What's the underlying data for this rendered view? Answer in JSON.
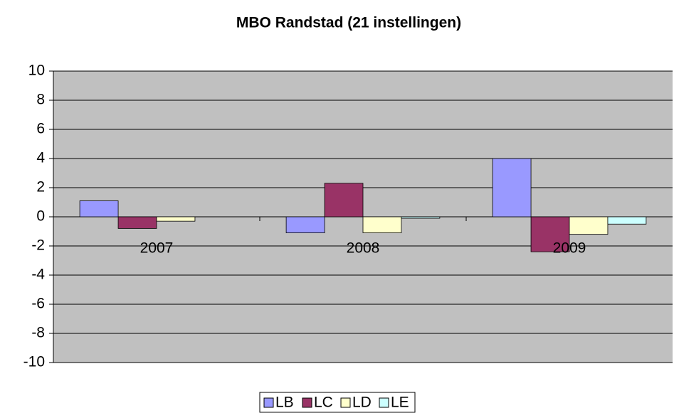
{
  "chart_data": {
    "type": "bar",
    "title": "MBO Randstad (21 instellingen)",
    "categories": [
      "2007",
      "2008",
      "2009"
    ],
    "series": [
      {
        "name": "LB",
        "color": "#9999ff",
        "values": [
          1.1,
          -1.1,
          4.0
        ]
      },
      {
        "name": "LC",
        "color": "#993366",
        "values": [
          -0.8,
          2.3,
          -2.4
        ]
      },
      {
        "name": "LD",
        "color": "#ffffcc",
        "values": [
          -0.3,
          -1.1,
          -1.2
        ]
      },
      {
        "name": "LE",
        "color": "#ccffff",
        "values": [
          0,
          -0.1,
          -0.5
        ]
      }
    ],
    "ylim": [
      -10,
      10
    ],
    "yticks": [
      -10,
      -8,
      -6,
      -4,
      -2,
      0,
      2,
      4,
      6,
      8,
      10
    ],
    "grid": true,
    "legend": "bottom"
  }
}
